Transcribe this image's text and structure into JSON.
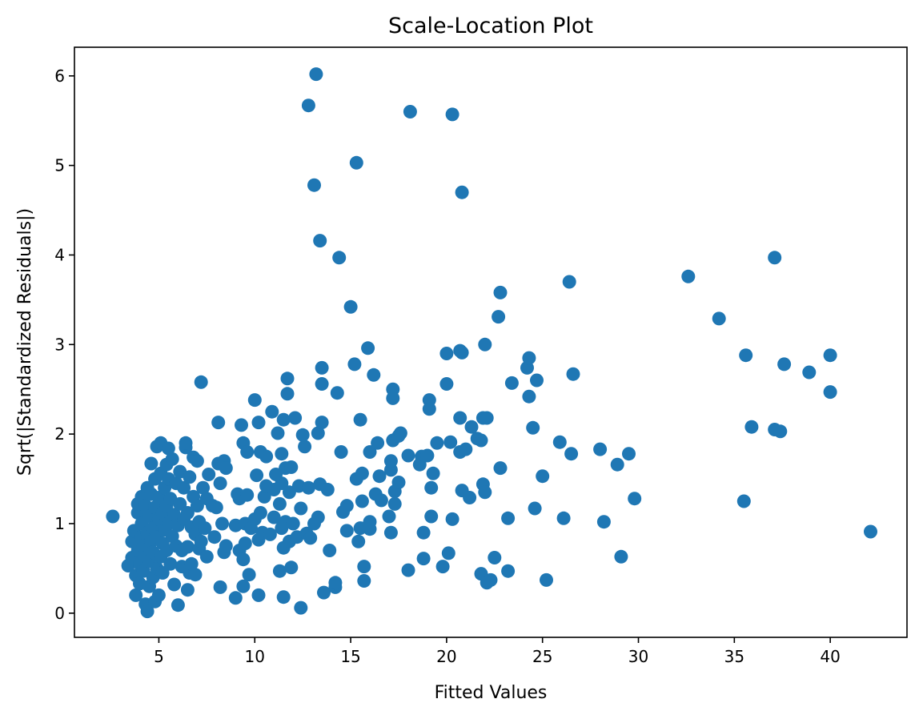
{
  "chart_data": {
    "type": "scatter",
    "title": "Scale-Location Plot",
    "xlabel": "Fitted Values",
    "ylabel": "Sqrt(|Standardized Residuals|)",
    "xlim": [
      0.6,
      44.0
    ],
    "ylim": [
      -0.27,
      6.32
    ],
    "xticks": [
      5,
      10,
      15,
      20,
      25,
      30,
      35,
      40
    ],
    "yticks": [
      0,
      1,
      2,
      3,
      4,
      5,
      6
    ],
    "grid": false,
    "marker_color": "#1f77b4",
    "series": [
      {
        "points": [
          [
            2.6,
            1.08
          ],
          [
            3.4,
            0.53
          ],
          [
            3.6,
            0.62
          ],
          [
            3.6,
            0.8
          ],
          [
            3.7,
            0.92
          ],
          [
            3.8,
            0.2
          ],
          [
            3.8,
            0.42
          ],
          [
            3.9,
            0.7
          ],
          [
            3.9,
            1.12
          ],
          [
            3.9,
            1.22
          ],
          [
            4.0,
            0.33
          ],
          [
            4.0,
            0.55
          ],
          [
            4.1,
            0.85
          ],
          [
            4.1,
            1.0
          ],
          [
            4.1,
            1.3
          ],
          [
            4.2,
            0.47
          ],
          [
            4.2,
            0.75
          ],
          [
            4.3,
            0.1
          ],
          [
            4.3,
            0.62
          ],
          [
            4.3,
            1.2
          ],
          [
            4.4,
            0.02
          ],
          [
            4.4,
            0.9
          ],
          [
            4.4,
            1.4
          ],
          [
            4.5,
            0.3
          ],
          [
            4.5,
            0.58
          ],
          [
            4.5,
            1.08
          ],
          [
            4.6,
            0.8
          ],
          [
            4.6,
            1.33
          ],
          [
            4.6,
            1.67
          ],
          [
            4.7,
            0.4
          ],
          [
            4.7,
            0.68
          ],
          [
            4.7,
            0.95
          ],
          [
            4.8,
            0.13
          ],
          [
            4.8,
            1.18
          ],
          [
            4.8,
            1.5
          ],
          [
            4.9,
            0.5
          ],
          [
            4.9,
            0.85
          ],
          [
            4.9,
            1.86
          ],
          [
            5.0,
            0.2
          ],
          [
            5.0,
            1.05
          ],
          [
            5.0,
            1.29
          ],
          [
            5.1,
            0.63
          ],
          [
            5.1,
            1.56
          ],
          [
            5.1,
            1.9
          ],
          [
            5.2,
            0.45
          ],
          [
            5.2,
            0.78
          ],
          [
            5.2,
            1.12
          ],
          [
            5.3,
            0.93
          ],
          [
            5.3,
            1.4
          ],
          [
            5.4,
            0.7
          ],
          [
            5.4,
            1.2
          ],
          [
            5.4,
            1.66
          ],
          [
            5.5,
            1.0
          ],
          [
            5.5,
            1.5
          ],
          [
            5.5,
            1.84
          ],
          [
            5.6,
            0.55
          ],
          [
            5.6,
            1.28
          ],
          [
            5.7,
            0.86
          ],
          [
            5.7,
            1.72
          ],
          [
            5.8,
            0.32
          ],
          [
            5.8,
            1.1
          ],
          [
            5.9,
            0.75
          ],
          [
            5.9,
            1.45
          ],
          [
            6.0,
            0.09
          ],
          [
            6.0,
            0.98
          ],
          [
            6.1,
            1.22
          ],
          [
            6.1,
            1.58
          ],
          [
            6.2,
            0.52
          ],
          [
            6.2,
            0.7
          ],
          [
            6.3,
            1.05
          ],
          [
            6.3,
            1.4
          ],
          [
            6.4,
            1.85
          ],
          [
            6.4,
            1.9
          ],
          [
            6.5,
            0.26
          ],
          [
            6.5,
            0.74
          ],
          [
            6.5,
            1.12
          ],
          [
            6.6,
            0.45
          ],
          [
            6.6,
            1.52
          ],
          [
            6.7,
            0.55
          ],
          [
            6.7,
            0.96
          ],
          [
            6.8,
            1.3
          ],
          [
            6.8,
            1.74
          ],
          [
            6.9,
            0.43
          ],
          [
            6.9,
            0.88
          ],
          [
            7.0,
            1.2
          ],
          [
            7.0,
            1.7
          ],
          [
            7.1,
            0.72
          ],
          [
            7.1,
            1.02
          ],
          [
            7.2,
            0.8
          ],
          [
            7.2,
            2.58
          ],
          [
            7.3,
            1.4
          ],
          [
            7.4,
            0.95
          ],
          [
            7.5,
            0.63
          ],
          [
            7.5,
            1.28
          ],
          [
            7.6,
            1.55
          ],
          [
            7.8,
            1.2
          ],
          [
            7.9,
            0.85
          ],
          [
            8.0,
            1.18
          ],
          [
            8.1,
            1.67
          ],
          [
            8.1,
            2.13
          ],
          [
            8.2,
            0.29
          ],
          [
            8.2,
            1.45
          ],
          [
            8.3,
            1.0
          ],
          [
            8.4,
            0.68
          ],
          [
            8.4,
            1.7
          ],
          [
            8.5,
            0.75
          ],
          [
            8.5,
            1.62
          ],
          [
            9.0,
            0.17
          ],
          [
            9.0,
            0.98
          ],
          [
            9.1,
            1.33
          ],
          [
            9.2,
            0.7
          ],
          [
            9.2,
            1.28
          ],
          [
            9.3,
            2.1
          ],
          [
            9.4,
            0.3
          ],
          [
            9.4,
            0.6
          ],
          [
            9.4,
            1.9
          ],
          [
            9.5,
            0.78
          ],
          [
            9.5,
            1.0
          ],
          [
            9.6,
            1.32
          ],
          [
            9.6,
            1.8
          ],
          [
            9.7,
            0.43
          ],
          [
            9.8,
            0.95
          ],
          [
            10.0,
            2.38
          ],
          [
            10.0,
            1.05
          ],
          [
            10.1,
            1.54
          ],
          [
            10.2,
            0.2
          ],
          [
            10.2,
            0.82
          ],
          [
            10.2,
            2.13
          ],
          [
            10.3,
            1.12
          ],
          [
            10.3,
            1.8
          ],
          [
            10.4,
            0.9
          ],
          [
            10.5,
            1.3
          ],
          [
            10.6,
            1.42
          ],
          [
            10.6,
            1.75
          ],
          [
            10.8,
            0.88
          ],
          [
            10.9,
            2.25
          ],
          [
            11.0,
            1.07
          ],
          [
            11.0,
            1.38
          ],
          [
            11.1,
            1.55
          ],
          [
            11.2,
            2.01
          ],
          [
            11.3,
            0.47
          ],
          [
            11.3,
            1.22
          ],
          [
            11.4,
            0.95
          ],
          [
            11.4,
            1.45
          ],
          [
            11.4,
            1.78
          ],
          [
            11.5,
            0.18
          ],
          [
            11.5,
            0.73
          ],
          [
            11.5,
            2.16
          ],
          [
            11.6,
            1.02
          ],
          [
            11.6,
            1.62
          ],
          [
            11.7,
            2.45
          ],
          [
            11.7,
            2.62
          ],
          [
            11.8,
            0.8
          ],
          [
            11.8,
            1.35
          ],
          [
            11.9,
            0.51
          ],
          [
            11.9,
            1.63
          ],
          [
            12.0,
            1.0
          ],
          [
            12.1,
            2.18
          ],
          [
            12.2,
            0.85
          ],
          [
            12.3,
            1.42
          ],
          [
            12.4,
            0.06
          ],
          [
            12.4,
            1.17
          ],
          [
            12.5,
            1.99
          ],
          [
            12.6,
            1.86
          ],
          [
            12.7,
            0.89
          ],
          [
            12.8,
            1.4
          ],
          [
            12.8,
            5.67
          ],
          [
            12.9,
            0.84
          ],
          [
            13.1,
            4.78
          ],
          [
            13.1,
            1.0
          ],
          [
            13.2,
            6.02
          ],
          [
            13.3,
            1.07
          ],
          [
            13.3,
            2.01
          ],
          [
            13.4,
            1.44
          ],
          [
            13.4,
            4.16
          ],
          [
            13.5,
            2.74
          ],
          [
            13.5,
            2.56
          ],
          [
            13.5,
            2.13
          ],
          [
            13.6,
            0.23
          ],
          [
            13.8,
            1.38
          ],
          [
            13.9,
            0.7
          ],
          [
            14.2,
            0.29
          ],
          [
            14.2,
            0.34
          ],
          [
            14.3,
            2.46
          ],
          [
            14.4,
            3.97
          ],
          [
            14.5,
            1.8
          ],
          [
            14.6,
            1.13
          ],
          [
            14.8,
            0.92
          ],
          [
            14.8,
            1.2
          ],
          [
            15.0,
            3.42
          ],
          [
            15.2,
            2.78
          ],
          [
            15.3,
            1.5
          ],
          [
            15.3,
            5.03
          ],
          [
            15.4,
            0.8
          ],
          [
            15.5,
            2.16
          ],
          [
            15.5,
            0.95
          ],
          [
            15.6,
            1.56
          ],
          [
            15.6,
            1.25
          ],
          [
            15.7,
            0.52
          ],
          [
            15.7,
            0.36
          ],
          [
            15.9,
            2.96
          ],
          [
            16.0,
            1.8
          ],
          [
            16.0,
            0.94
          ],
          [
            16.0,
            1.02
          ],
          [
            16.2,
            2.66
          ],
          [
            16.3,
            1.33
          ],
          [
            16.4,
            1.9
          ],
          [
            16.5,
            1.53
          ],
          [
            16.6,
            1.26
          ],
          [
            17.0,
            1.08
          ],
          [
            17.1,
            0.9
          ],
          [
            17.1,
            1.6
          ],
          [
            17.1,
            1.7
          ],
          [
            17.2,
            1.93
          ],
          [
            17.2,
            2.4
          ],
          [
            17.2,
            2.5
          ],
          [
            17.3,
            1.22
          ],
          [
            17.3,
            1.36
          ],
          [
            17.5,
            1.98
          ],
          [
            17.5,
            1.46
          ],
          [
            17.6,
            2.01
          ],
          [
            18.0,
            0.48
          ],
          [
            18.0,
            1.76
          ],
          [
            18.1,
            5.6
          ],
          [
            18.6,
            1.66
          ],
          [
            18.7,
            1.75
          ],
          [
            18.8,
            0.9
          ],
          [
            18.8,
            0.61
          ],
          [
            19.0,
            1.76
          ],
          [
            19.1,
            2.38
          ],
          [
            19.1,
            2.28
          ],
          [
            19.2,
            1.4
          ],
          [
            19.2,
            1.08
          ],
          [
            19.3,
            1.56
          ],
          [
            19.5,
            1.9
          ],
          [
            19.8,
            0.52
          ],
          [
            20.0,
            2.9
          ],
          [
            20.0,
            2.56
          ],
          [
            20.1,
            0.67
          ],
          [
            20.2,
            1.91
          ],
          [
            20.3,
            5.57
          ],
          [
            20.3,
            1.05
          ],
          [
            20.7,
            2.93
          ],
          [
            20.7,
            2.18
          ],
          [
            20.7,
            1.8
          ],
          [
            20.8,
            1.37
          ],
          [
            20.8,
            2.91
          ],
          [
            20.8,
            4.7
          ],
          [
            21.0,
            1.83
          ],
          [
            21.2,
            1.29
          ],
          [
            21.3,
            2.08
          ],
          [
            21.6,
            1.95
          ],
          [
            21.8,
            0.44
          ],
          [
            21.8,
            1.93
          ],
          [
            21.9,
            1.44
          ],
          [
            21.9,
            2.18
          ],
          [
            22.0,
            1.35
          ],
          [
            22.0,
            3.0
          ],
          [
            22.1,
            2.18
          ],
          [
            22.1,
            0.34
          ],
          [
            22.3,
            0.37
          ],
          [
            22.5,
            0.62
          ],
          [
            22.7,
            3.31
          ],
          [
            22.8,
            3.58
          ],
          [
            22.8,
            1.62
          ],
          [
            23.2,
            1.06
          ],
          [
            23.2,
            0.47
          ],
          [
            23.4,
            2.57
          ],
          [
            24.2,
            2.74
          ],
          [
            24.3,
            2.85
          ],
          [
            24.3,
            2.42
          ],
          [
            24.5,
            2.07
          ],
          [
            24.6,
            1.17
          ],
          [
            24.7,
            2.6
          ],
          [
            25.0,
            1.53
          ],
          [
            25.2,
            0.37
          ],
          [
            25.9,
            1.91
          ],
          [
            26.1,
            1.06
          ],
          [
            26.4,
            3.7
          ],
          [
            26.5,
            1.78
          ],
          [
            26.6,
            2.67
          ],
          [
            28.0,
            1.83
          ],
          [
            28.2,
            1.02
          ],
          [
            28.9,
            1.66
          ],
          [
            29.1,
            0.63
          ],
          [
            29.5,
            1.78
          ],
          [
            29.8,
            1.28
          ],
          [
            32.6,
            3.76
          ],
          [
            34.2,
            3.29
          ],
          [
            35.5,
            1.25
          ],
          [
            35.6,
            2.88
          ],
          [
            35.9,
            2.08
          ],
          [
            37.1,
            3.97
          ],
          [
            37.1,
            2.05
          ],
          [
            37.4,
            2.03
          ],
          [
            37.6,
            2.78
          ],
          [
            38.9,
            2.69
          ],
          [
            40.0,
            2.88
          ],
          [
            40.0,
            2.47
          ],
          [
            42.1,
            0.91
          ]
        ]
      }
    ]
  }
}
